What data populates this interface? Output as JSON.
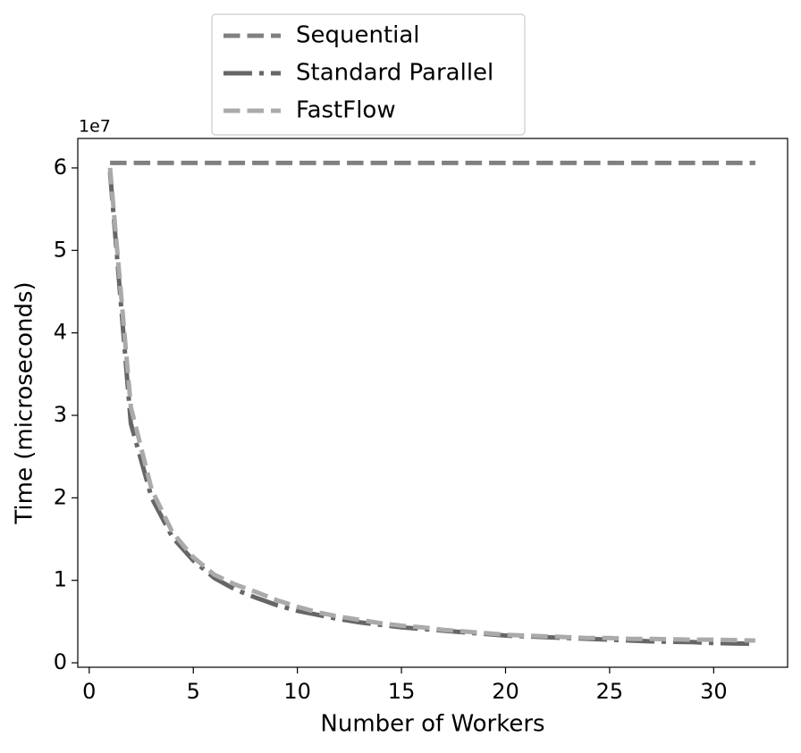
{
  "chart_data": {
    "type": "line",
    "xlabel": "Number of Workers",
    "ylabel": "Time (microseconds)",
    "y_offset_label": "1e7",
    "x": [
      1,
      2,
      3,
      4,
      5,
      6,
      7,
      8,
      9,
      10,
      11,
      12,
      13,
      14,
      15,
      16,
      17,
      18,
      19,
      20,
      21,
      22,
      23,
      24,
      25,
      26,
      27,
      28,
      29,
      30,
      31,
      32
    ],
    "series": [
      {
        "name": "Sequential",
        "color": "#808080",
        "linestyle": "dashed",
        "values": [
          60600000,
          60600000,
          60600000,
          60600000,
          60600000,
          60600000,
          60600000,
          60600000,
          60600000,
          60600000,
          60600000,
          60600000,
          60600000,
          60600000,
          60600000,
          60600000,
          60600000,
          60600000,
          60600000,
          60600000,
          60600000,
          60600000,
          60600000,
          60600000,
          60600000,
          60600000,
          60600000,
          60600000,
          60600000,
          60600000,
          60600000,
          60600000
        ]
      },
      {
        "name": "Standard Parallel",
        "color": "#666666",
        "linestyle": "dashdot",
        "values": [
          59500000,
          29000000,
          20000000,
          15200000,
          12400000,
          10300000,
          8900000,
          7900000,
          7000000,
          6300000,
          5800000,
          5300000,
          4900000,
          4600000,
          4300000,
          4100000,
          3900000,
          3700000,
          3500000,
          3300000,
          3200000,
          3100000,
          3000000,
          2900000,
          2800000,
          2700000,
          2600000,
          2550000,
          2500000,
          2400000,
          2350000,
          2300000
        ]
      },
      {
        "name": "FastFlow",
        "color": "#aaaaaa",
        "linestyle": "dashed",
        "values": [
          60000000,
          31000000,
          21000000,
          15800000,
          12800000,
          10700000,
          9500000,
          8600000,
          7600000,
          6800000,
          6100000,
          5600000,
          5200000,
          4800000,
          4500000,
          4300000,
          4000000,
          3800000,
          3600000,
          3400000,
          3300000,
          3200000,
          3100000,
          3000000,
          3000000,
          2900000,
          2900000,
          2850000,
          2800000,
          2800000,
          2750000,
          2700000
        ]
      }
    ],
    "xlim": [
      -0.55,
      33.55
    ],
    "ylim": [
      -540000,
      63570000
    ],
    "xticks": [
      0,
      5,
      10,
      15,
      20,
      25,
      30
    ],
    "yticks": [
      {
        "value": 0,
        "label": "0"
      },
      {
        "value": 10000000,
        "label": "1"
      },
      {
        "value": 20000000,
        "label": "2"
      },
      {
        "value": 30000000,
        "label": "3"
      },
      {
        "value": 40000000,
        "label": "4"
      },
      {
        "value": 50000000,
        "label": "5"
      },
      {
        "value": 60000000,
        "label": "6"
      }
    ],
    "grid": false,
    "legend": "top-center-outside"
  }
}
